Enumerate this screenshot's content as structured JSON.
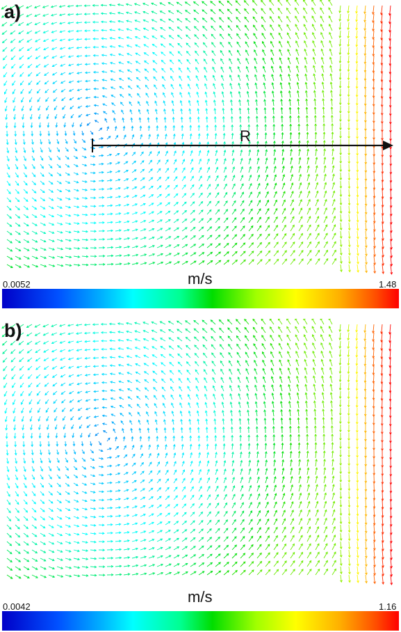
{
  "chart_data": [
    {
      "type": "vector_field",
      "panel_label": "a)",
      "annotation": "R",
      "colorbar": {
        "label": "m/s",
        "min": 0.0052,
        "max": 1.48,
        "colors": [
          "#0000c8",
          "#00b0ff",
          "#00ffff",
          "#00dd00",
          "#ffff00",
          "#ff5000",
          "#ff0000"
        ]
      },
      "vortex_center": [
        0.24,
        0.47
      ],
      "vortex_radius": [
        0.36,
        0.46
      ],
      "fast_zone": "right edge"
    },
    {
      "type": "vector_field",
      "panel_label": "b)",
      "colorbar": {
        "label": "m/s",
        "min": 0.0042,
        "max": 1.16,
        "colors": [
          "#0000c8",
          "#00b0ff",
          "#00ffff",
          "#00dd00",
          "#ffff00",
          "#ff5000",
          "#ff0000"
        ]
      },
      "vortex_center": [
        0.26,
        0.45
      ],
      "vortex_radius": [
        0.34,
        0.48
      ],
      "fast_zone": "right edge"
    }
  ]
}
